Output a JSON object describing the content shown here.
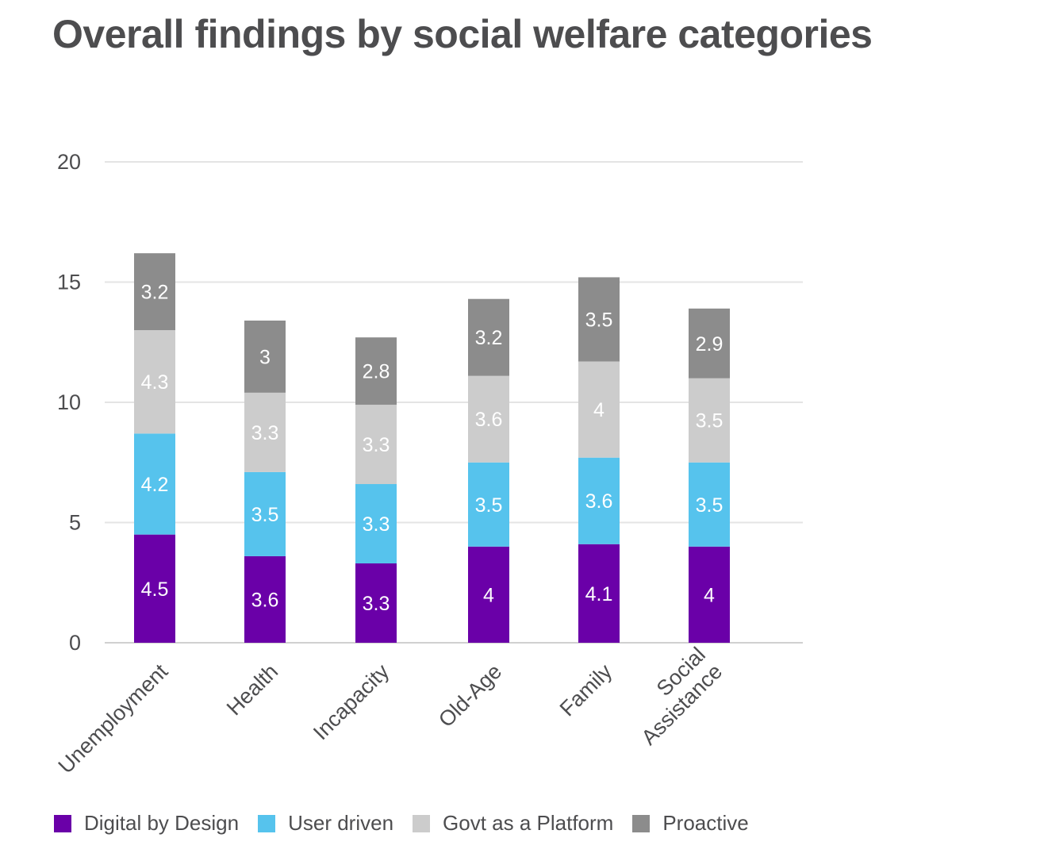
{
  "chart_data": {
    "type": "bar",
    "stacked": true,
    "title": "Overall findings by social welfare categories",
    "xlabel": "",
    "ylabel": "",
    "ylim": [
      0,
      20
    ],
    "yticks": [
      0,
      5,
      10,
      15,
      20
    ],
    "grid": true,
    "legend_position": "bottom",
    "categories": [
      [
        "Unemployment"
      ],
      [
        "Health"
      ],
      [
        "Incapacity"
      ],
      [
        "Old-Age"
      ],
      [
        "Family"
      ],
      [
        "Social",
        "Assistance"
      ]
    ],
    "series": [
      {
        "name": "Digital by Design",
        "color": "#6a00a8",
        "label_color": "#ffffff",
        "values": [
          4.5,
          3.6,
          3.3,
          4,
          4.1,
          4
        ],
        "labels": [
          "4.5",
          "3.6",
          "3.3",
          "4",
          "4.1",
          "4"
        ]
      },
      {
        "name": "User driven",
        "color": "#56c3ed",
        "label_color": "#ffffff",
        "values": [
          4.2,
          3.5,
          3.3,
          3.5,
          3.6,
          3.5
        ],
        "labels": [
          "4.2",
          "3.5",
          "3.3",
          "3.5",
          "3.6",
          "3.5"
        ]
      },
      {
        "name": "Govt as a Platform",
        "color": "#cccccc",
        "label_color": "#ffffff",
        "values": [
          4.3,
          3.3,
          3.3,
          3.6,
          4,
          3.5
        ],
        "labels": [
          "4.3",
          "3.3",
          "3.3",
          "3.6",
          "4",
          "3.5"
        ]
      },
      {
        "name": "Proactive",
        "color": "#8c8c8c",
        "label_color": "#ffffff",
        "values": [
          3.2,
          3,
          2.8,
          3.2,
          3.5,
          2.9
        ],
        "labels": [
          "3.2",
          "3",
          "2.8",
          "3.2",
          "3.5",
          "2.9"
        ]
      }
    ]
  }
}
